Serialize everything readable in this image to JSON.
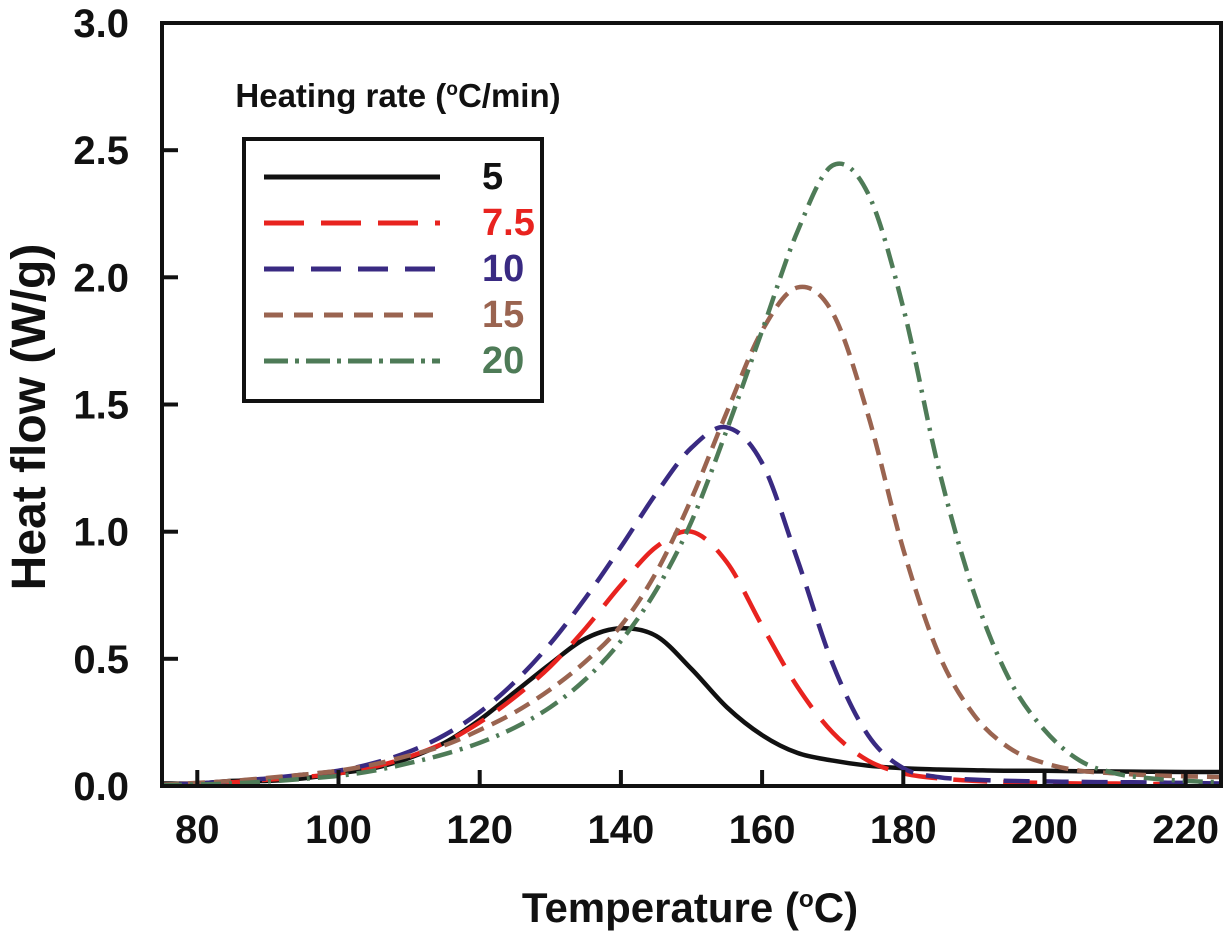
{
  "figure": {
    "background": "#ffffff",
    "xlabel_prefix": "Temperature (",
    "xlabel_sup": "o",
    "xlabel_suffix": "C)",
    "ylabel": "Heat flow (W/g)"
  },
  "chart_data": {
    "type": "line",
    "title": "",
    "xlabel": "Temperature (°C)",
    "ylabel": "Heat flow (W/g)",
    "xlim": [
      75,
      225
    ],
    "ylim": [
      0,
      3
    ],
    "grid": false,
    "x_tick_labels": [
      "80",
      "100",
      "120",
      "140",
      "160",
      "180",
      "200",
      "220"
    ],
    "x_tick_values": [
      80,
      100,
      120,
      140,
      160,
      180,
      200,
      220
    ],
    "y_tick_labels": [
      "0.0",
      "0.5",
      "1.0",
      "1.5",
      "2.0",
      "2.5",
      "3.0"
    ],
    "y_tick_values": [
      0,
      0.5,
      1,
      1.5,
      2,
      2.5,
      3
    ],
    "legend": {
      "title_prefix": "Heating rate (",
      "title_sup": "o",
      "title_suffix": "C/min)",
      "position": "top-left"
    },
    "temperatures_c": [
      75,
      80,
      85,
      90,
      95,
      100,
      105,
      110,
      115,
      120,
      125,
      130,
      135,
      140,
      145,
      150,
      155,
      160,
      165,
      170,
      175,
      180,
      185,
      190,
      195,
      200,
      205,
      210,
      215,
      220,
      225
    ],
    "series": [
      {
        "name": "5",
        "color": "#111111",
        "line_style": "solid",
        "dash": "",
        "legend_dash": "",
        "values": [
          0.01,
          0.01,
          0.02,
          0.02,
          0.03,
          0.05,
          0.07,
          0.11,
          0.17,
          0.26,
          0.37,
          0.48,
          0.58,
          0.62,
          0.59,
          0.46,
          0.31,
          0.2,
          0.13,
          0.1,
          0.08,
          0.07,
          0.065,
          0.062,
          0.06,
          0.06,
          0.058,
          0.057,
          0.056,
          0.055,
          0.055
        ]
      },
      {
        "name": "7.5",
        "color": "#e8231f",
        "line_style": "long-dash",
        "dash": "34 16",
        "legend_dash": "40 17",
        "values": [
          0.005,
          0.01,
          0.015,
          0.025,
          0.035,
          0.05,
          0.075,
          0.115,
          0.17,
          0.25,
          0.35,
          0.47,
          0.62,
          0.79,
          0.94,
          1.0,
          0.88,
          0.63,
          0.39,
          0.21,
          0.1,
          0.05,
          0.03,
          0.02,
          0.015,
          0.012,
          0.01,
          0.01,
          0.008,
          0.006,
          0.005
        ]
      },
      {
        "name": "10",
        "color": "#392a82",
        "line_style": "dash",
        "dash": "26 13",
        "legend_dash": "30 17",
        "values": [
          0.005,
          0.01,
          0.02,
          0.03,
          0.045,
          0.06,
          0.09,
          0.135,
          0.2,
          0.29,
          0.41,
          0.56,
          0.74,
          0.94,
          1.15,
          1.33,
          1.41,
          1.27,
          0.89,
          0.48,
          0.2,
          0.07,
          0.035,
          0.025,
          0.02,
          0.018,
          0.016,
          0.015,
          0.014,
          0.012,
          0.01
        ]
      },
      {
        "name": "15",
        "color": "#9a6450",
        "line_style": "short-dash",
        "dash": "17 9",
        "legend_dash": "19 11",
        "values": [
          0.005,
          0.012,
          0.02,
          0.032,
          0.045,
          0.06,
          0.085,
          0.12,
          0.16,
          0.22,
          0.29,
          0.38,
          0.49,
          0.63,
          0.84,
          1.13,
          1.47,
          1.79,
          1.96,
          1.86,
          1.46,
          0.93,
          0.52,
          0.28,
          0.15,
          0.09,
          0.06,
          0.05,
          0.042,
          0.038,
          0.035
        ]
      },
      {
        "name": "20",
        "color": "#4e7b57",
        "line_style": "dash-dot",
        "dash": "20 8 3 8",
        "legend_dash": "24 7 4 7",
        "values": [
          0.003,
          0.006,
          0.01,
          0.018,
          0.028,
          0.04,
          0.06,
          0.09,
          0.125,
          0.17,
          0.23,
          0.31,
          0.42,
          0.57,
          0.77,
          1.04,
          1.4,
          1.79,
          2.18,
          2.44,
          2.33,
          1.88,
          1.25,
          0.76,
          0.42,
          0.22,
          0.1,
          0.05,
          0.03,
          0.02,
          0.015
        ]
      }
    ]
  }
}
